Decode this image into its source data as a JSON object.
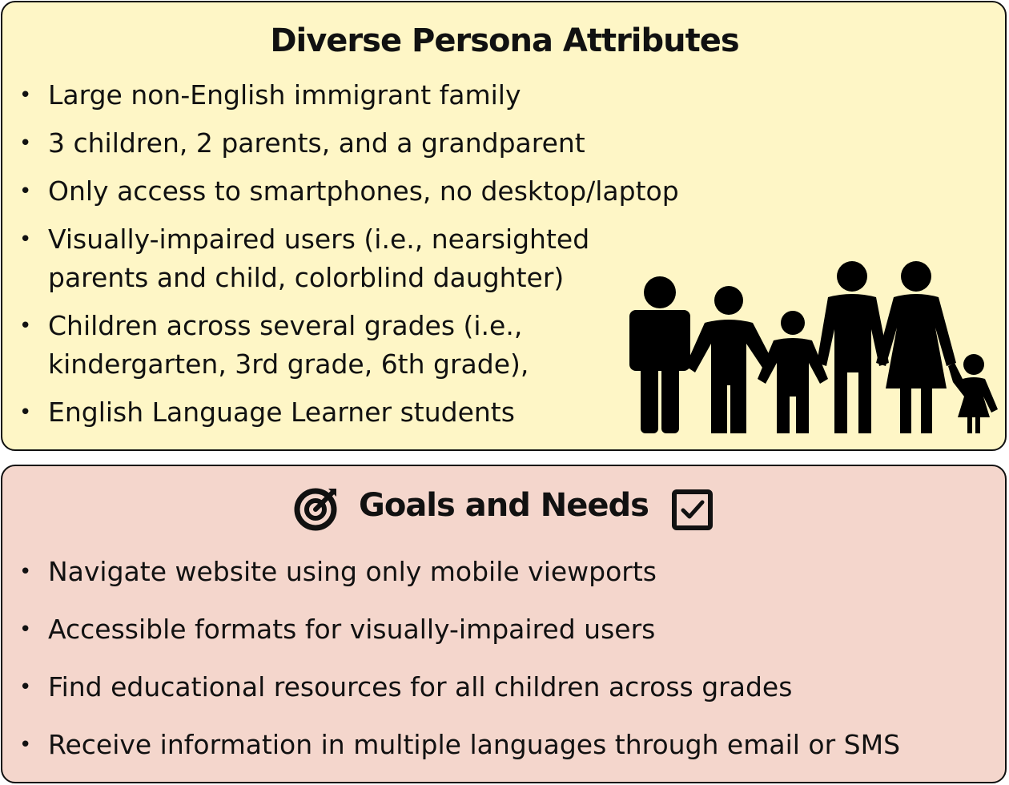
{
  "persona": {
    "title": "Diverse Persona Attributes",
    "items": [
      {
        "line1": "Large non-English immigrant family",
        "line2": ""
      },
      {
        "line1": "3 children, 2 parents, and a grandparent",
        "line2": ""
      },
      {
        "line1": "Only access to smartphones, no desktop/laptop",
        "line2": ""
      },
      {
        "line1": "Visually-impaired users (i.e., nearsighted",
        "line2": "parents and child, colorblind daughter)"
      },
      {
        "line1": "Children across several grades (i.e.,",
        "line2": "kindergarten, 3rd grade, 6th grade),"
      },
      {
        "line1": "English Language Learner students",
        "line2": ""
      }
    ],
    "bullet": "•",
    "image_icon": "family-silhouette-icon"
  },
  "goals": {
    "title": "Goals and Needs",
    "left_icon": "target-icon",
    "right_icon": "checkbox-checked-icon",
    "items": [
      "Navigate website using only mobile viewports",
      "Accessible formats for visually-impaired users",
      "Find educational resources for all children across grades",
      "Receive information in multiple languages through email or SMS"
    ]
  },
  "colors": {
    "persona_bg": "#fef6c6",
    "goals_bg": "#f4d6cc",
    "text": "#111111"
  }
}
